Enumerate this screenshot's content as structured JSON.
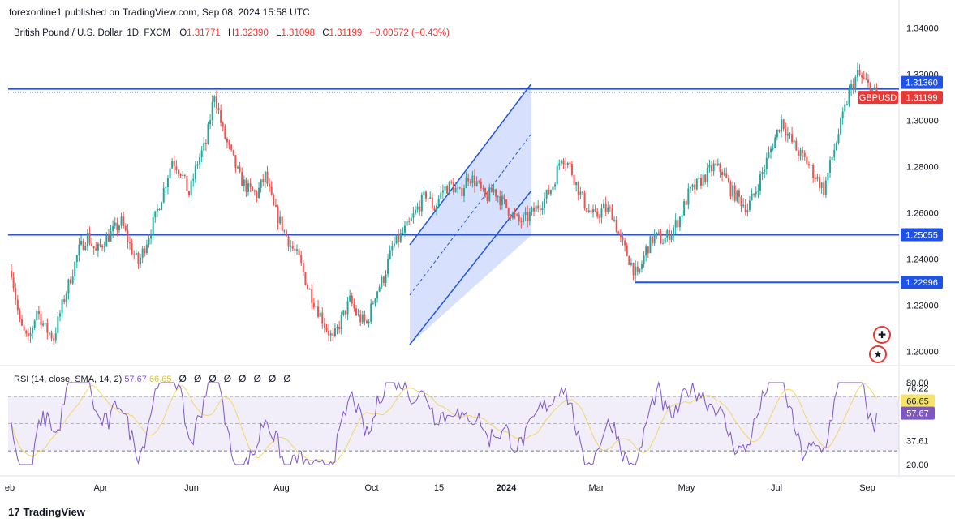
{
  "header": {
    "published": "forexonline1 published on TradingView.com, Sep 08, 2024 15:58 UTC"
  },
  "legend": {
    "symbol": "British Pound / U.S. Dollar, 1D, FXCM",
    "o_label": "O",
    "o": "1.31771",
    "h_label": "H",
    "h": "1.32390",
    "l_label": "L",
    "l": "1.31098",
    "c_label": "C",
    "c": "1.31199",
    "change": "−0.00572 (−0.43%)"
  },
  "rsi_legend": {
    "label": "RSI (14, close, SMA, 14, 2)",
    "rsi": "57.67",
    "sma": "66.65",
    "hidden_markers": [
      "Ø",
      "Ø",
      "Ø",
      "Ø",
      "Ø",
      "Ø",
      "Ø",
      "Ø"
    ]
  },
  "chart_data": {
    "type": "candlestick",
    "symbol": "GBPUSD",
    "price_axis": {
      "ticks": [
        "1.34000",
        "1.32000",
        "1.30000",
        "1.28000",
        "1.26000",
        "1.24000",
        "1.22000",
        "1.20000"
      ],
      "range": [
        1.195,
        1.345
      ]
    },
    "x_ticks": [
      "eb",
      "Apr",
      "Jun",
      "Aug",
      "Oct",
      "15",
      "2024",
      "Mar",
      "May",
      "Jul",
      "Sep"
    ],
    "price_labels": [
      {
        "text": "1.31360",
        "value": 1.3136,
        "color": "#1e53e5"
      },
      {
        "text": "1.31199",
        "value": 1.312,
        "color": "#e53935",
        "tag": "GBPUSD"
      },
      {
        "text": "1.25055",
        "value": 1.25055,
        "color": "#1e53e5"
      },
      {
        "text": "1.22996",
        "value": 1.22996,
        "color": "#1e53e5"
      }
    ],
    "horizontal_levels": [
      {
        "value": 1.3136,
        "style": "solid",
        "color": "#1e53e5"
      },
      {
        "value": 1.25055,
        "style": "solid",
        "color": "#1e53e5"
      },
      {
        "value": 1.22996,
        "style": "solid",
        "color": "#1e53e5",
        "from": "May"
      },
      {
        "value": 1.312,
        "style": "dotted",
        "color": "#888888"
      }
    ],
    "close_path": [
      [
        0,
        1.235
      ],
      [
        4,
        1.212
      ],
      [
        8,
        1.204
      ],
      [
        12,
        1.218
      ],
      [
        16,
        1.21
      ],
      [
        20,
        1.206
      ],
      [
        24,
        1.22
      ],
      [
        28,
        1.232
      ],
      [
        32,
        1.244
      ],
      [
        36,
        1.25
      ],
      [
        40,
        1.243
      ],
      [
        44,
        1.248
      ],
      [
        48,
        1.252
      ],
      [
        52,
        1.256
      ],
      [
        56,
        1.246
      ],
      [
        60,
        1.238
      ],
      [
        64,
        1.248
      ],
      [
        68,
        1.258
      ],
      [
        72,
        1.27
      ],
      [
        76,
        1.283
      ],
      [
        80,
        1.278
      ],
      [
        84,
        1.268
      ],
      [
        88,
        1.282
      ],
      [
        92,
        1.29
      ],
      [
        96,
        1.312
      ],
      [
        100,
        1.295
      ],
      [
        104,
        1.285
      ],
      [
        108,
        1.275
      ],
      [
        112,
        1.27
      ],
      [
        116,
        1.268
      ],
      [
        120,
        1.276
      ],
      [
        124,
        1.262
      ],
      [
        128,
        1.254
      ],
      [
        132,
        1.246
      ],
      [
        136,
        1.24
      ],
      [
        140,
        1.228
      ],
      [
        144,
        1.22
      ],
      [
        148,
        1.212
      ],
      [
        152,
        1.205
      ],
      [
        156,
        1.214
      ],
      [
        160,
        1.222
      ],
      [
        164,
        1.215
      ],
      [
        168,
        1.212
      ],
      [
        172,
        1.225
      ],
      [
        176,
        1.232
      ],
      [
        180,
        1.245
      ],
      [
        184,
        1.25
      ],
      [
        188,
        1.255
      ],
      [
        192,
        1.262
      ],
      [
        196,
        1.268
      ],
      [
        200,
        1.262
      ],
      [
        204,
        1.27
      ],
      [
        208,
        1.272
      ],
      [
        212,
        1.268
      ],
      [
        216,
        1.276
      ],
      [
        220,
        1.273
      ],
      [
        224,
        1.266
      ],
      [
        228,
        1.27
      ],
      [
        232,
        1.265
      ],
      [
        236,
        1.26
      ],
      [
        240,
        1.256
      ],
      [
        244,
        1.258
      ],
      [
        248,
        1.262
      ],
      [
        252,
        1.266
      ],
      [
        256,
        1.272
      ],
      [
        260,
        1.285
      ],
      [
        264,
        1.28
      ],
      [
        268,
        1.27
      ],
      [
        272,
        1.262
      ],
      [
        276,
        1.258
      ],
      [
        280,
        1.262
      ],
      [
        284,
        1.26
      ],
      [
        288,
        1.248
      ],
      [
        292,
        1.24
      ],
      [
        296,
        1.232
      ],
      [
        300,
        1.244
      ],
      [
        304,
        1.25
      ],
      [
        308,
        1.248
      ],
      [
        312,
        1.252
      ],
      [
        316,
        1.258
      ],
      [
        320,
        1.268
      ],
      [
        324,
        1.272
      ],
      [
        328,
        1.276
      ],
      [
        332,
        1.28
      ],
      [
        336,
        1.278
      ],
      [
        340,
        1.27
      ],
      [
        344,
        1.266
      ],
      [
        348,
        1.262
      ],
      [
        352,
        1.27
      ],
      [
        356,
        1.28
      ],
      [
        360,
        1.29
      ],
      [
        364,
        1.3
      ],
      [
        368,
        1.292
      ],
      [
        372,
        1.286
      ],
      [
        376,
        1.282
      ],
      [
        380,
        1.276
      ],
      [
        384,
        1.27
      ],
      [
        388,
        1.284
      ],
      [
        392,
        1.298
      ],
      [
        396,
        1.312
      ],
      [
        400,
        1.32
      ],
      [
        404,
        1.316
      ],
      [
        408,
        1.312
      ]
    ],
    "rsi": {
      "range": [
        20,
        80
      ],
      "ticks": [
        "80.00",
        "20.00"
      ],
      "labels": [
        {
          "text": "76.22",
          "value": 76.22
        },
        {
          "text": "66.65",
          "value": 66.65,
          "series": "sma"
        },
        {
          "text": "57.67",
          "value": 57.67,
          "series": "rsi"
        },
        {
          "text": "37.61",
          "value": 37.61
        }
      ],
      "band": [
        30,
        70
      ],
      "middle": 50
    },
    "drawings": {
      "channel": "rising channel from Oct low to Jan",
      "channel_color": "#1e53e5"
    }
  },
  "footer": {
    "brand": "TradingView"
  }
}
